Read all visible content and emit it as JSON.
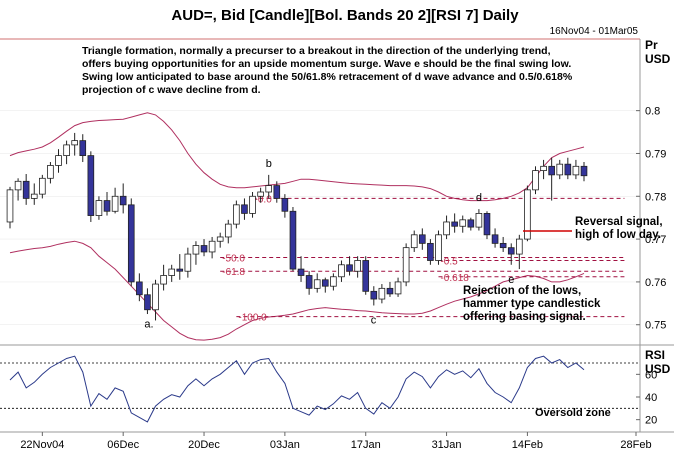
{
  "chart_data": [
    {
      "type": "candlestick",
      "title": "AUD=, Bid [Candle][Bol. Bands 20 2][RSI  7] Daily",
      "date_range": "16Nov04 - 01Mar05",
      "ylabel": "Pr\nUSD",
      "ylabel_lines": [
        "Pr",
        "USD"
      ],
      "yticks": [
        0.75,
        0.76,
        0.77,
        0.78,
        0.79,
        0.8
      ],
      "ytick_labels": [
        "0.75",
        "0.76",
        "0.77",
        "0.78",
        "0.79",
        "0.8"
      ],
      "ylim": [
        0.7455,
        0.8165
      ],
      "xticks": [
        "22Nov04",
        "06Dec",
        "20Dec",
        "03Jan",
        "17Jan",
        "31Jan",
        "14Feb",
        "28Feb"
      ],
      "colors": {
        "up": "#ffffff",
        "down": "#34349a",
        "band": "#b03060",
        "level": "#a01040",
        "grid": "#b0b0b0"
      },
      "description": "Triangle formation, normally a precurser to a breakout in the direction of the underlying trend, offers buying opportunities for an upside momentum surge. Wave e should be the final swing low. Swing low anticipated to base around the 50/61.8% retracement of d wave advance and 0.5/0.618% projection of c wave decline from d.",
      "description_lines": [
        "Triangle formation, normally a precurser to a breakout in the direction of the underlying trend,",
        "offers buying opportunities for an upside momentum surge. Wave e should be the final swing low.",
        "Swing low anticipated to base around the 50/61.8% retracement of d wave advance and 0.5/0.618%",
        "projection of c wave decline from d."
      ],
      "candles": [
        {
          "date": "16Nov04",
          "o": 0.774,
          "h": 0.7822,
          "l": 0.7725,
          "c": 0.7815
        },
        {
          "date": "17Nov04",
          "o": 0.7815,
          "h": 0.7842,
          "l": 0.779,
          "c": 0.7835
        },
        {
          "date": "18Nov04",
          "o": 0.7835,
          "h": 0.7852,
          "l": 0.778,
          "c": 0.7795
        },
        {
          "date": "19Nov04",
          "o": 0.7795,
          "h": 0.783,
          "l": 0.778,
          "c": 0.7805
        },
        {
          "date": "22Nov04",
          "o": 0.7805,
          "h": 0.785,
          "l": 0.7795,
          "c": 0.7842
        },
        {
          "date": "23Nov04",
          "o": 0.7842,
          "h": 0.788,
          "l": 0.783,
          "c": 0.7872
        },
        {
          "date": "24Nov04",
          "o": 0.7872,
          "h": 0.791,
          "l": 0.7855,
          "c": 0.7895
        },
        {
          "date": "25Nov04",
          "o": 0.7895,
          "h": 0.793,
          "l": 0.7875,
          "c": 0.792
        },
        {
          "date": "26Nov04",
          "o": 0.792,
          "h": 0.7948,
          "l": 0.7895,
          "c": 0.793
        },
        {
          "date": "29Nov04",
          "o": 0.793,
          "h": 0.7945,
          "l": 0.788,
          "c": 0.7895
        },
        {
          "date": "30Nov04",
          "o": 0.7895,
          "h": 0.7905,
          "l": 0.774,
          "c": 0.7755
        },
        {
          "date": "01Dec04",
          "o": 0.7755,
          "h": 0.78,
          "l": 0.7745,
          "c": 0.779
        },
        {
          "date": "02Dec04",
          "o": 0.779,
          "h": 0.781,
          "l": 0.7755,
          "c": 0.7765
        },
        {
          "date": "03Dec04",
          "o": 0.7765,
          "h": 0.782,
          "l": 0.776,
          "c": 0.78
        },
        {
          "date": "06Dec04",
          "o": 0.78,
          "h": 0.783,
          "l": 0.776,
          "c": 0.778
        },
        {
          "date": "07Dec04",
          "o": 0.778,
          "h": 0.7795,
          "l": 0.759,
          "c": 0.76
        },
        {
          "date": "08Dec04",
          "o": 0.76,
          "h": 0.762,
          "l": 0.7555,
          "c": 0.757
        },
        {
          "date": "09Dec04",
          "o": 0.757,
          "h": 0.7585,
          "l": 0.7525,
          "c": 0.7535
        },
        {
          "date": "10Dec04",
          "o": 0.7535,
          "h": 0.7605,
          "l": 0.751,
          "c": 0.7595
        },
        {
          "date": "13Dec04",
          "o": 0.7595,
          "h": 0.764,
          "l": 0.758,
          "c": 0.7615
        },
        {
          "date": "14Dec04",
          "o": 0.7615,
          "h": 0.764,
          "l": 0.76,
          "c": 0.763
        },
        {
          "date": "15Dec04",
          "o": 0.763,
          "h": 0.7665,
          "l": 0.7605,
          "c": 0.7625
        },
        {
          "date": "16Dec04",
          "o": 0.7625,
          "h": 0.768,
          "l": 0.761,
          "c": 0.7665
        },
        {
          "date": "17Dec04",
          "o": 0.7665,
          "h": 0.7695,
          "l": 0.764,
          "c": 0.7685
        },
        {
          "date": "20Dec04",
          "o": 0.7685,
          "h": 0.77,
          "l": 0.766,
          "c": 0.767
        },
        {
          "date": "21Dec04",
          "o": 0.767,
          "h": 0.7705,
          "l": 0.7655,
          "c": 0.7695
        },
        {
          "date": "22Dec04",
          "o": 0.7695,
          "h": 0.7715,
          "l": 0.768,
          "c": 0.7705
        },
        {
          "date": "23Dec04",
          "o": 0.7705,
          "h": 0.7745,
          "l": 0.769,
          "c": 0.7735
        },
        {
          "date": "24Dec04",
          "o": 0.7735,
          "h": 0.779,
          "l": 0.7725,
          "c": 0.778
        },
        {
          "date": "27Dec04",
          "o": 0.778,
          "h": 0.7795,
          "l": 0.7745,
          "c": 0.776
        },
        {
          "date": "28Dec04",
          "o": 0.776,
          "h": 0.781,
          "l": 0.775,
          "c": 0.78
        },
        {
          "date": "29Dec04",
          "o": 0.78,
          "h": 0.782,
          "l": 0.7785,
          "c": 0.781
        },
        {
          "date": "30Dec04",
          "o": 0.781,
          "h": 0.785,
          "l": 0.7795,
          "c": 0.7825
        },
        {
          "date": "31Dec04",
          "o": 0.7825,
          "h": 0.7835,
          "l": 0.7785,
          "c": 0.7795
        },
        {
          "date": "03Jan05",
          "o": 0.7795,
          "h": 0.7805,
          "l": 0.775,
          "c": 0.7765
        },
        {
          "date": "04Jan05",
          "o": 0.7765,
          "h": 0.7775,
          "l": 0.7625,
          "c": 0.763
        },
        {
          "date": "05Jan05",
          "o": 0.763,
          "h": 0.766,
          "l": 0.76,
          "c": 0.7615
        },
        {
          "date": "06Jan05",
          "o": 0.7615,
          "h": 0.7625,
          "l": 0.757,
          "c": 0.7585
        },
        {
          "date": "07Jan05",
          "o": 0.7585,
          "h": 0.762,
          "l": 0.7575,
          "c": 0.7605
        },
        {
          "date": "10Jan05",
          "o": 0.7605,
          "h": 0.761,
          "l": 0.7575,
          "c": 0.759
        },
        {
          "date": "11Jan05",
          "o": 0.759,
          "h": 0.762,
          "l": 0.758,
          "c": 0.7612
        },
        {
          "date": "12Jan05",
          "o": 0.7612,
          "h": 0.765,
          "l": 0.76,
          "c": 0.764
        },
        {
          "date": "13Jan05",
          "o": 0.764,
          "h": 0.766,
          "l": 0.7615,
          "c": 0.7625
        },
        {
          "date": "14Jan05",
          "o": 0.7625,
          "h": 0.766,
          "l": 0.761,
          "c": 0.765
        },
        {
          "date": "17Jan05",
          "o": 0.765,
          "h": 0.766,
          "l": 0.757,
          "c": 0.7578
        },
        {
          "date": "18Jan05",
          "o": 0.7578,
          "h": 0.759,
          "l": 0.7545,
          "c": 0.756
        },
        {
          "date": "19Jan05",
          "o": 0.756,
          "h": 0.7595,
          "l": 0.755,
          "c": 0.7585
        },
        {
          "date": "20Jan05",
          "o": 0.7585,
          "h": 0.76,
          "l": 0.7565,
          "c": 0.7572
        },
        {
          "date": "21Jan05",
          "o": 0.7572,
          "h": 0.761,
          "l": 0.7565,
          "c": 0.76
        },
        {
          "date": "24Jan05",
          "o": 0.76,
          "h": 0.769,
          "l": 0.759,
          "c": 0.768
        },
        {
          "date": "25Jan05",
          "o": 0.768,
          "h": 0.772,
          "l": 0.767,
          "c": 0.771
        },
        {
          "date": "26Jan05",
          "o": 0.771,
          "h": 0.7725,
          "l": 0.7675,
          "c": 0.769
        },
        {
          "date": "27Jan05",
          "o": 0.769,
          "h": 0.77,
          "l": 0.764,
          "c": 0.765
        },
        {
          "date": "28Jan05",
          "o": 0.765,
          "h": 0.772,
          "l": 0.764,
          "c": 0.771
        },
        {
          "date": "31Jan05",
          "o": 0.771,
          "h": 0.7755,
          "l": 0.77,
          "c": 0.774
        },
        {
          "date": "01Feb05",
          "o": 0.774,
          "h": 0.776,
          "l": 0.7715,
          "c": 0.773
        },
        {
          "date": "02Feb05",
          "o": 0.773,
          "h": 0.7755,
          "l": 0.7715,
          "c": 0.7745
        },
        {
          "date": "03Feb05",
          "o": 0.7745,
          "h": 0.775,
          "l": 0.772,
          "c": 0.7728
        },
        {
          "date": "04Feb05",
          "o": 0.7728,
          "h": 0.777,
          "l": 0.772,
          "c": 0.776
        },
        {
          "date": "07Feb05",
          "o": 0.776,
          "h": 0.7765,
          "l": 0.77,
          "c": 0.771
        },
        {
          "date": "08Feb05",
          "o": 0.771,
          "h": 0.7725,
          "l": 0.768,
          "c": 0.769
        },
        {
          "date": "09Feb05",
          "o": 0.769,
          "h": 0.7705,
          "l": 0.767,
          "c": 0.768
        },
        {
          "date": "10Feb05",
          "o": 0.768,
          "h": 0.769,
          "l": 0.764,
          "c": 0.7665
        },
        {
          "date": "11Feb05",
          "o": 0.7665,
          "h": 0.771,
          "l": 0.763,
          "c": 0.77
        },
        {
          "date": "14Feb05",
          "o": 0.77,
          "h": 0.7825,
          "l": 0.7695,
          "c": 0.7815
        },
        {
          "date": "15Feb05",
          "o": 0.7815,
          "h": 0.787,
          "l": 0.7805,
          "c": 0.786
        },
        {
          "date": "16Feb05",
          "o": 0.786,
          "h": 0.7885,
          "l": 0.784,
          "c": 0.787
        },
        {
          "date": "17Feb05",
          "o": 0.787,
          "h": 0.789,
          "l": 0.779,
          "c": 0.785
        },
        {
          "date": "18Feb05",
          "o": 0.785,
          "h": 0.7885,
          "l": 0.784,
          "c": 0.7875
        },
        {
          "date": "21Feb05",
          "o": 0.7875,
          "h": 0.789,
          "l": 0.784,
          "c": 0.785
        },
        {
          "date": "22Feb05",
          "o": 0.785,
          "h": 0.7885,
          "l": 0.784,
          "c": 0.787
        },
        {
          "date": "23Feb05",
          "o": 0.787,
          "h": 0.788,
          "l": 0.7835,
          "c": 0.7848
        }
      ],
      "bollinger_upper": [
        0.7895,
        0.7902,
        0.7906,
        0.791,
        0.7915,
        0.7925,
        0.7938,
        0.7952,
        0.7965,
        0.7972,
        0.7975,
        0.7977,
        0.7978,
        0.7979,
        0.798,
        0.7985,
        0.799,
        0.7995,
        0.799,
        0.7975,
        0.7955,
        0.793,
        0.79,
        0.7875,
        0.7855,
        0.784,
        0.7828,
        0.7822,
        0.782,
        0.782,
        0.7822,
        0.7824,
        0.7826,
        0.7828,
        0.783,
        0.7835,
        0.784,
        0.784,
        0.7838,
        0.7836,
        0.7834,
        0.7832,
        0.783,
        0.7829,
        0.7828,
        0.7827,
        0.7826,
        0.7825,
        0.7825,
        0.7825,
        0.7824,
        0.7822,
        0.7818,
        0.781,
        0.78,
        0.7795,
        0.7792,
        0.779,
        0.779,
        0.779,
        0.7792,
        0.7795,
        0.78,
        0.7808,
        0.782,
        0.7845,
        0.787,
        0.789,
        0.79,
        0.7905,
        0.791,
        0.7915
      ],
      "bollinger_lower": [
        0.7668,
        0.7672,
        0.7675,
        0.7678,
        0.768,
        0.7683,
        0.7688,
        0.7692,
        0.7695,
        0.769,
        0.768,
        0.766,
        0.7645,
        0.763,
        0.761,
        0.759,
        0.757,
        0.755,
        0.753,
        0.751,
        0.7495,
        0.748,
        0.747,
        0.7465,
        0.7464,
        0.7466,
        0.747,
        0.7478,
        0.749,
        0.75,
        0.751,
        0.7515,
        0.7518,
        0.752,
        0.7522,
        0.7525,
        0.753,
        0.7535,
        0.7538,
        0.754,
        0.7538,
        0.7536,
        0.7535,
        0.7533,
        0.7532,
        0.753,
        0.7528,
        0.7527,
        0.7526,
        0.7525,
        0.7525,
        0.7527,
        0.7532,
        0.754,
        0.7548,
        0.7555,
        0.756,
        0.7565,
        0.7572,
        0.758,
        0.759,
        0.76,
        0.7605,
        0.761,
        0.7615,
        0.7613,
        0.7608,
        0.76,
        0.76,
        0.7605,
        0.7612,
        0.762
      ],
      "fib_levels": [
        {
          "label": "-0.0",
          "value": 0.7795
        },
        {
          "label": "-50.0",
          "value": 0.7657
        },
        {
          "label": "-61.8",
          "value": 0.7625
        },
        {
          "label": "-0.5",
          "value": 0.765
        },
        {
          "label": "-0.618",
          "value": 0.7612
        },
        {
          "label": "-100.0",
          "value": 0.7519
        }
      ],
      "wave_labels": [
        {
          "label": "a.",
          "date": "09Dec04",
          "value": 0.7535
        },
        {
          "label": "b",
          "date": "30Dec04",
          "value": 0.785
        },
        {
          "label": "c",
          "date": "18Jan05",
          "value": 0.7545
        },
        {
          "label": "d",
          "date": "04Feb05",
          "value": 0.777
        },
        {
          "label": "e",
          "date": "10Feb05",
          "value": 0.764
        }
      ],
      "annotations": [
        {
          "text": "Reversal signal,\nhigh of low day.",
          "lines": [
            "Reversal signal,",
            "high of low day."
          ]
        },
        {
          "text": "Rejection of the lows,\nhammer type candlestick\noffering basing signal.",
          "lines": [
            "Rejection of the lows,",
            "hammer type candlestick",
            "offering basing signal."
          ]
        }
      ]
    },
    {
      "type": "line",
      "indicator": "RSI 7",
      "ylabel": "RSI\nUSD",
      "ylabel_lines": [
        "RSI",
        "USD"
      ],
      "ylim": [
        10,
        85
      ],
      "yticks": [
        20,
        40,
        60
      ],
      "ytick_labels": [
        "20",
        "40",
        "60"
      ],
      "reference_lines": [
        30,
        70
      ],
      "annotation": "Oversold zone",
      "values": [
        55,
        62,
        48,
        53,
        60,
        66,
        70,
        74,
        76,
        62,
        32,
        43,
        38,
        48,
        45,
        26,
        22,
        18,
        32,
        38,
        42,
        40,
        50,
        56,
        50,
        56,
        60,
        66,
        72,
        60,
        70,
        73,
        74,
        62,
        52,
        30,
        27,
        24,
        32,
        29,
        34,
        41,
        38,
        44,
        30,
        25,
        35,
        30,
        40,
        56,
        62,
        58,
        48,
        58,
        64,
        60,
        63,
        57,
        65,
        52,
        44,
        40,
        35,
        48,
        66,
        74,
        76,
        70,
        73,
        66,
        70,
        64
      ]
    }
  ]
}
